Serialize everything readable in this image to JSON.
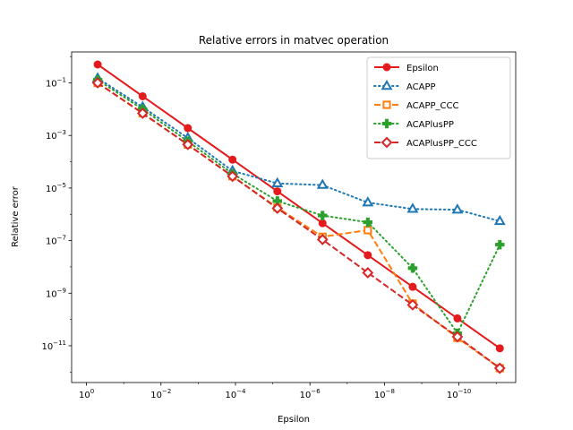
{
  "chart_data": {
    "type": "line",
    "title": "Relative errors in matvec operation",
    "xlabel": "Epsilon",
    "ylabel": "Relative error",
    "x_scale": "log",
    "y_scale": "log",
    "x_reversed": true,
    "xlim": [
      2.5,
      3e-12
    ],
    "ylim": [
      4e-13,
      1.5
    ],
    "x_ticks": [
      {
        "value": 1,
        "base": "10",
        "exp": "0"
      },
      {
        "value": 0.01,
        "base": "10",
        "exp": "−2"
      },
      {
        "value": 0.0001,
        "base": "10",
        "exp": "−4"
      },
      {
        "value": 1e-06,
        "base": "10",
        "exp": "−6"
      },
      {
        "value": 1e-08,
        "base": "10",
        "exp": "−8"
      },
      {
        "value": 1e-10,
        "base": "10",
        "exp": "−10"
      }
    ],
    "y_ticks": [
      {
        "value": 0.1,
        "base": "10",
        "exp": "−1"
      },
      {
        "value": 0.001,
        "base": "10",
        "exp": "−3"
      },
      {
        "value": 1e-05,
        "base": "10",
        "exp": "−5"
      },
      {
        "value": 1e-07,
        "base": "10",
        "exp": "−7"
      },
      {
        "value": 1e-09,
        "base": "10",
        "exp": "−9"
      },
      {
        "value": 1e-11,
        "base": "10",
        "exp": "−11"
      }
    ],
    "grid": false,
    "legend_position": "top-right",
    "x": [
      0.5,
      0.031,
      0.0019,
      0.00012,
      7.5e-06,
      4.6e-07,
      2.8e-08,
      1.75e-09,
      1.1e-10,
      8e-12
    ],
    "series": [
      {
        "name": "Epsilon",
        "color": "#e41a1c",
        "dash": "solid",
        "marker": "circle",
        "values": [
          0.5,
          0.031,
          0.0019,
          0.00012,
          7.5e-06,
          4.6e-07,
          2.8e-08,
          1.75e-09,
          1.1e-10,
          8e-12
        ]
      },
      {
        "name": "ACAPP",
        "color": "#1f77b4",
        "dash": "dotted",
        "marker": "triangle",
        "values": [
          0.15,
          0.012,
          0.0008,
          4.5e-05,
          1.5e-05,
          1.3e-05,
          2.8e-06,
          1.6e-06,
          1.5e-06,
          5.5e-07
        ]
      },
      {
        "name": "ACAPP_CCC",
        "color": "#ff7f0e",
        "dash": "dashed",
        "marker": "square",
        "values": [
          0.1,
          0.007,
          0.00045,
          2.8e-05,
          1.8e-06,
          1.4e-07,
          2.5e-07,
          4e-10,
          2e-11,
          1.4e-12
        ]
      },
      {
        "name": "ACAPlusPP",
        "color": "#2ca02c",
        "dash": "dotted",
        "marker": "plus",
        "values": [
          0.13,
          0.01,
          0.0006,
          3.5e-05,
          3.2e-06,
          9e-07,
          5e-07,
          9e-09,
          3e-11,
          7e-08
        ]
      },
      {
        "name": "ACAPlusPP_CCC",
        "color": "#d62728",
        "dash": "dashed",
        "marker": "diamond",
        "values": [
          0.1,
          0.007,
          0.00045,
          2.8e-05,
          1.7e-06,
          1.1e-07,
          6e-09,
          3.6e-10,
          2.2e-11,
          1.4e-12
        ]
      }
    ]
  }
}
